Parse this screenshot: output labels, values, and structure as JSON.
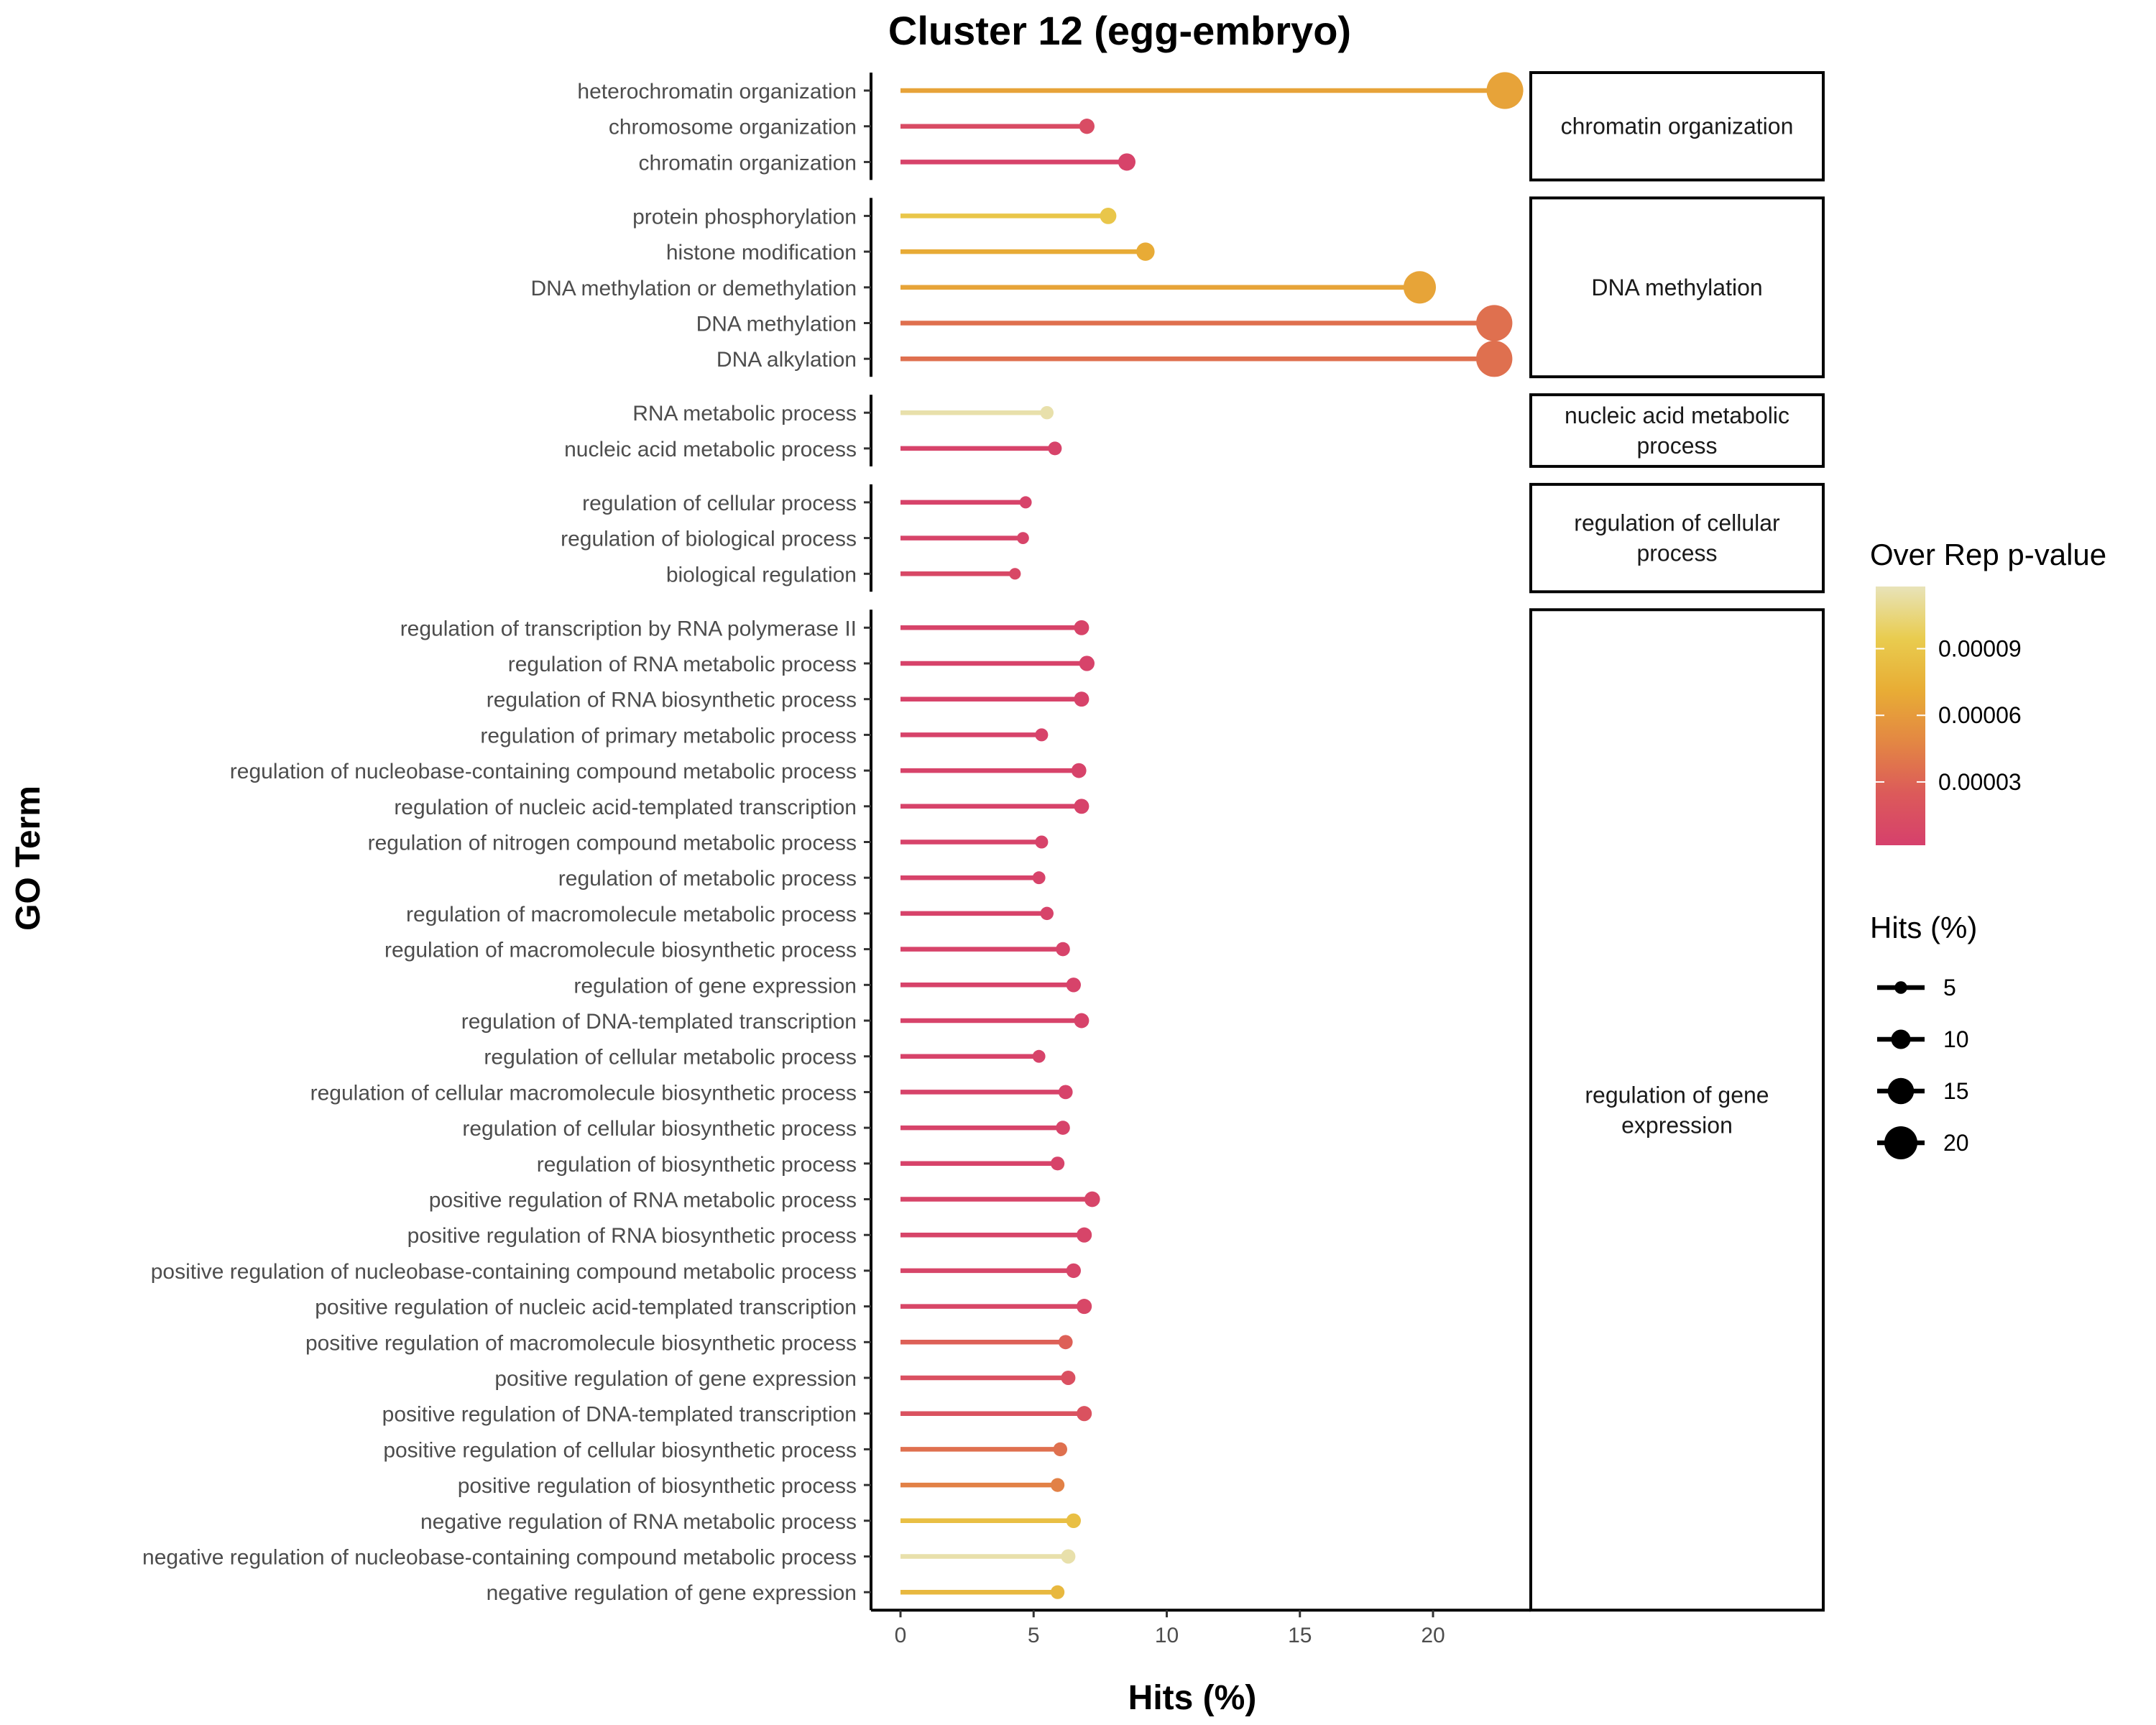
{
  "chart_data": {
    "type": "lollipop",
    "title": "Cluster 12 (egg-embryo)",
    "xlabel": "Hits (%)",
    "ylabel": "GO Term",
    "xlim": [
      -1,
      23.5
    ],
    "xticks": [
      0,
      5,
      10,
      15,
      20
    ],
    "grid": false,
    "facets": [
      {
        "label_lines": [
          "chromatin organization"
        ],
        "terms": [
          {
            "term": "heterochromatin organization",
            "hits": 22.7,
            "pvalue": 6.5e-05
          },
          {
            "term": "chromosome organization",
            "hits": 7.0,
            "pvalue": 1.2e-05
          },
          {
            "term": "chromatin organization",
            "hits": 8.5,
            "pvalue": 4e-06
          }
        ]
      },
      {
        "label_lines": [
          "DNA methylation"
        ],
        "terms": [
          {
            "term": "protein phosphorylation",
            "hits": 7.8,
            "pvalue": 9e-05
          },
          {
            "term": "histone modification",
            "hits": 9.2,
            "pvalue": 7e-05
          },
          {
            "term": "DNA methylation or demethylation",
            "hits": 19.5,
            "pvalue": 6.6e-05
          },
          {
            "term": "DNA methylation",
            "hits": 22.3,
            "pvalue": 3.6e-05
          },
          {
            "term": "DNA alkylation",
            "hits": 22.3,
            "pvalue": 3.6e-05
          }
        ]
      },
      {
        "label_lines": [
          "nucleic acid metabolic",
          "process"
        ],
        "terms": [
          {
            "term": "RNA metabolic process",
            "hits": 5.5,
            "pvalue": 0.000115
          },
          {
            "term": "nucleic acid metabolic process",
            "hits": 5.8,
            "pvalue": 4e-06
          }
        ]
      },
      {
        "label_lines": [
          "regulation of cellular",
          "process"
        ],
        "terms": [
          {
            "term": "regulation of cellular process",
            "hits": 4.7,
            "pvalue": 4e-06
          },
          {
            "term": "regulation of biological process",
            "hits": 4.6,
            "pvalue": 5e-06
          },
          {
            "term": "biological regulation",
            "hits": 4.3,
            "pvalue": 9e-06
          }
        ]
      },
      {
        "label_lines": [
          "regulation of gene",
          "expression"
        ],
        "terms": [
          {
            "term": "regulation of transcription by RNA polymerase II",
            "hits": 6.8,
            "pvalue": 5e-06
          },
          {
            "term": "regulation of RNA metabolic process",
            "hits": 7.0,
            "pvalue": 4e-06
          },
          {
            "term": "regulation of RNA biosynthetic process",
            "hits": 6.8,
            "pvalue": 4e-06
          },
          {
            "term": "regulation of primary metabolic process",
            "hits": 5.3,
            "pvalue": 4e-06
          },
          {
            "term": "regulation of nucleobase-containing compound metabolic process",
            "hits": 6.7,
            "pvalue": 4e-06
          },
          {
            "term": "regulation of nucleic acid-templated transcription",
            "hits": 6.8,
            "pvalue": 4e-06
          },
          {
            "term": "regulation of nitrogen compound metabolic process",
            "hits": 5.3,
            "pvalue": 4e-06
          },
          {
            "term": "regulation of metabolic process",
            "hits": 5.2,
            "pvalue": 4e-06
          },
          {
            "term": "regulation of macromolecule metabolic process",
            "hits": 5.5,
            "pvalue": 4e-06
          },
          {
            "term": "regulation of macromolecule biosynthetic process",
            "hits": 6.1,
            "pvalue": 4e-06
          },
          {
            "term": "regulation of gene expression",
            "hits": 6.5,
            "pvalue": 4e-06
          },
          {
            "term": "regulation of DNA-templated transcription",
            "hits": 6.8,
            "pvalue": 4e-06
          },
          {
            "term": "regulation of cellular metabolic process",
            "hits": 5.2,
            "pvalue": 4e-06
          },
          {
            "term": "regulation of cellular macromolecule biosynthetic process",
            "hits": 6.2,
            "pvalue": 4e-06
          },
          {
            "term": "regulation of cellular biosynthetic process",
            "hits": 6.1,
            "pvalue": 4e-06
          },
          {
            "term": "regulation of biosynthetic process",
            "hits": 5.9,
            "pvalue": 4e-06
          },
          {
            "term": "positive regulation of RNA metabolic process",
            "hits": 7.2,
            "pvalue": 6e-06
          },
          {
            "term": "positive regulation of RNA biosynthetic process",
            "hits": 6.9,
            "pvalue": 6e-06
          },
          {
            "term": "positive regulation of nucleobase-containing compound metabolic process",
            "hits": 6.5,
            "pvalue": 6e-06
          },
          {
            "term": "positive regulation of nucleic acid-templated transcription",
            "hits": 6.9,
            "pvalue": 8e-06
          },
          {
            "term": "positive regulation of macromolecule biosynthetic process",
            "hits": 6.2,
            "pvalue": 2.8e-05
          },
          {
            "term": "positive regulation of gene expression",
            "hits": 6.3,
            "pvalue": 1.6e-05
          },
          {
            "term": "positive regulation of DNA-templated transcription",
            "hits": 6.9,
            "pvalue": 1.8e-05
          },
          {
            "term": "positive regulation of cellular biosynthetic process",
            "hits": 6.0,
            "pvalue": 3.6e-05
          },
          {
            "term": "positive regulation of biosynthetic process",
            "hits": 5.9,
            "pvalue": 4.5e-05
          },
          {
            "term": "negative regulation of RNA metabolic process",
            "hits": 6.5,
            "pvalue": 8.5e-05
          },
          {
            "term": "negative regulation of nucleobase-containing compound metabolic process",
            "hits": 6.3,
            "pvalue": 0.000115
          },
          {
            "term": "negative regulation of gene expression",
            "hits": 5.9,
            "pvalue": 8e-05
          }
        ]
      }
    ],
    "color_legend": {
      "title": "Over Rep p-value",
      "ticks": [
        {
          "label": "0.00003",
          "value": 3e-05
        },
        {
          "label": "0.00006",
          "value": 6e-05
        },
        {
          "label": "0.00009",
          "value": 9e-05
        }
      ],
      "range": [
        1.5e-06,
        0.000118
      ],
      "colors": [
        "#d6406c",
        "#dc5a5a",
        "#e38743",
        "#e8ad35",
        "#e9cc4f",
        "#e8e3b9"
      ]
    },
    "size_legend": {
      "title": "Hits (%)",
      "values": [
        5,
        10,
        15,
        20
      ]
    }
  }
}
